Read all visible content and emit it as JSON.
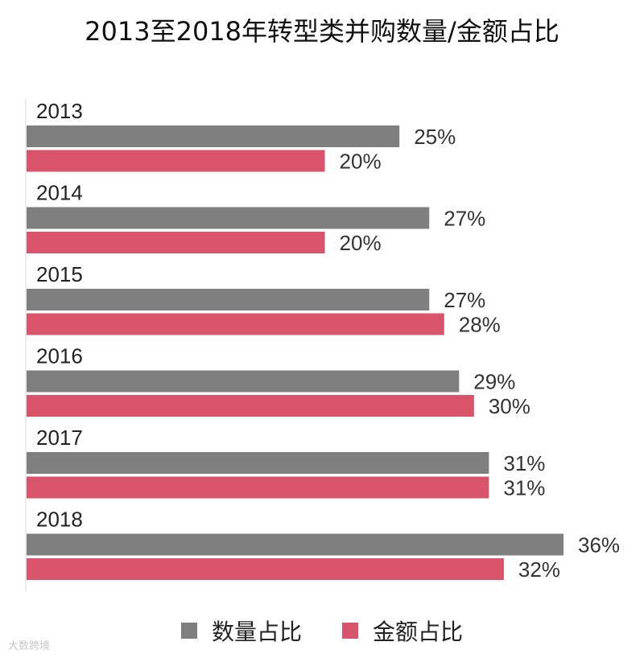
{
  "title": "2013至2018年转型类并购数量/金额占比",
  "colors": {
    "count": "#7f7f7f",
    "amount": "#d9546b"
  },
  "watermark": "大数跨境",
  "chart_data": {
    "type": "bar",
    "orientation": "horizontal",
    "categories": [
      "2013",
      "2014",
      "2015",
      "2016",
      "2017",
      "2018"
    ],
    "series": [
      {
        "name": "数量占比",
        "values": [
          25,
          27,
          27,
          29,
          31,
          36
        ],
        "labels": [
          "25%",
          "27%",
          "27%",
          "29%",
          "31%",
          "36%"
        ]
      },
      {
        "name": "金额占比",
        "values": [
          20,
          20,
          28,
          30,
          31,
          32
        ],
        "labels": [
          "20%",
          "20%",
          "28%",
          "30%",
          "31%",
          "32%"
        ]
      }
    ],
    "xlim": [
      0,
      36
    ],
    "legend": "bottom"
  }
}
